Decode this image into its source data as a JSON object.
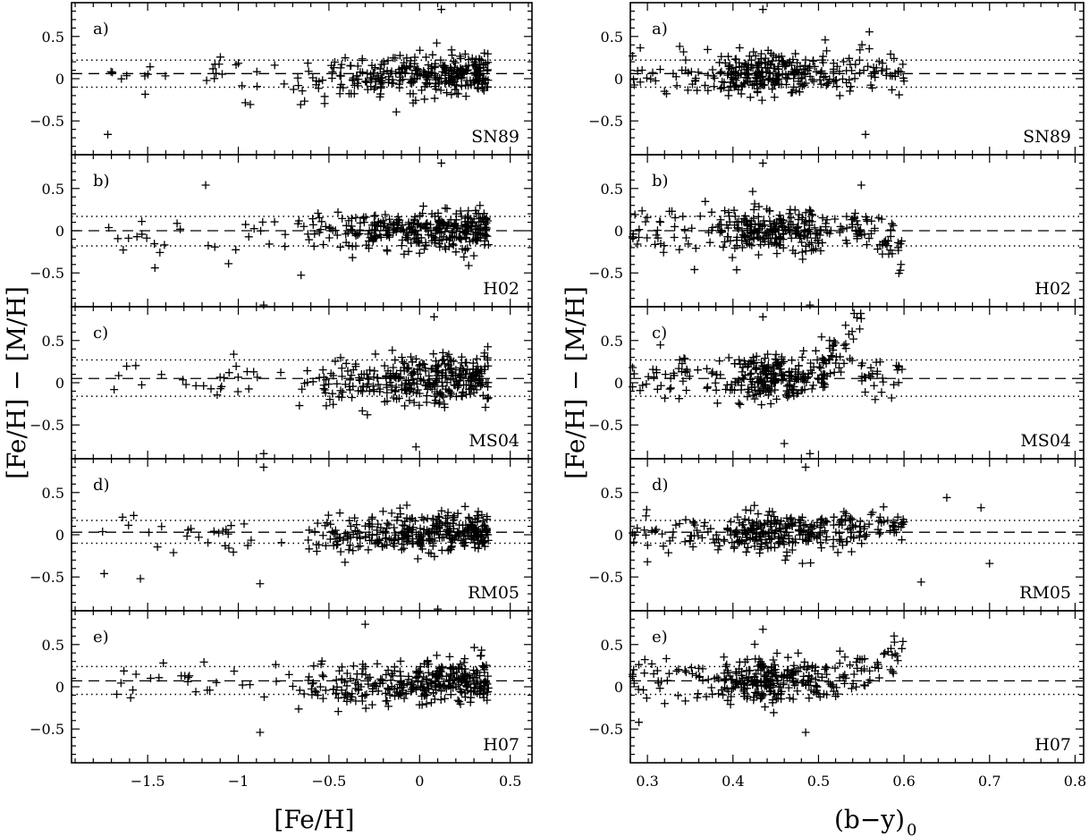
{
  "chart_data": {
    "type": "scatter",
    "marker": "plus",
    "color": "#000000",
    "ylabel": "[Fe/H] − [M/H]",
    "ylim": [
      -0.9,
      0.9
    ],
    "yticks": [
      -0.5,
      0,
      0.5
    ],
    "ytick_labels": [
      "−0.5",
      "0",
      "0.5"
    ],
    "columns": [
      {
        "xlabel_main": "[Fe/H]",
        "xlabel_sub": "",
        "xlim": [
          -1.92,
          0.62
        ],
        "xticks": [
          -1.5,
          -1,
          -0.5,
          0,
          0.5
        ],
        "xtick_labels": [
          "−1.5",
          "−1",
          "−0.5",
          "0",
          "0.5"
        ],
        "dist": {
          "kind": "metallicity",
          "n_main": 330,
          "main_min": -0.7,
          "main_max": 0.38,
          "skew": 0.55,
          "n_tail": 26,
          "tail_min": -1.75,
          "tail_max": -0.7
        }
      },
      {
        "xlabel_main": "(b−y)",
        "xlabel_sub": "0",
        "xlim": [
          0.28,
          0.81
        ],
        "xticks": [
          0.3,
          0.4,
          0.5,
          0.6,
          0.7,
          0.8
        ],
        "xtick_labels": [
          "0.3",
          "0.4",
          "0.5",
          "0.6",
          "0.7",
          "0.8"
        ],
        "dist": {
          "kind": "color",
          "center": 0.44,
          "sd": 0.035,
          "n_main": 300,
          "n_tail": 30,
          "tail_min": 0.28,
          "tail_max": 0.36
        }
      }
    ],
    "panels": [
      {
        "letter": "a)",
        "label": "SN89",
        "mean": 0.06,
        "sigma_hi": 0.22,
        "sigma_lo": -0.1,
        "scatter_sd": 0.12,
        "highlights": [
          {
            "x": [
              0.12
            ],
            "y": [
              0.82
            ]
          },
          {
            "x": [
              -1.72
            ],
            "y": [
              -0.66
            ]
          }
        ],
        "highlights_color": [
          {
            "x": [
              0.435
            ],
            "y": [
              0.82
            ]
          },
          {
            "x": [
              0.555
            ],
            "y": [
              -0.66
            ]
          }
        ],
        "trend": [
          0,
          0.3
        ],
        "trend_color": [
          0.53,
          0.56,
          0.25
        ]
      },
      {
        "letter": "b)",
        "label": "H02",
        "mean": 0.0,
        "sigma_hi": 0.17,
        "sigma_lo": -0.18,
        "scatter_sd": 0.13,
        "highlights": [
          {
            "x": [
              0.12
            ],
            "y": [
              0.8
            ]
          },
          {
            "x": [
              -0.86
            ],
            "y": [
              -0.88
            ]
          },
          {
            "x": [
              -1.18
            ],
            "y": [
              0.54
            ]
          },
          {
            "x": [
              -1.46
            ],
            "y": [
              -0.44
            ]
          }
        ],
        "highlights_color": [
          {
            "x": [
              0.435
            ],
            "y": [
              0.8
            ]
          },
          {
            "x": [
              0.49
            ],
            "y": [
              -0.88
            ]
          },
          {
            "x": [
              0.55
            ],
            "y": [
              0.54
            ]
          },
          {
            "x": [
              0.355
            ],
            "y": [
              -0.46
            ]
          }
        ],
        "trend": [
          0,
          0.0
        ],
        "trend_color": [
          0.56,
          0.6,
          -0.3
        ]
      },
      {
        "letter": "c)",
        "label": "MS04",
        "mean": 0.05,
        "sigma_hi": 0.27,
        "sigma_lo": -0.16,
        "scatter_sd": 0.14,
        "highlights": [
          {
            "x": [
              0.08
            ],
            "y": [
              0.78
            ]
          },
          {
            "x": [
              -0.86
            ],
            "y": [
              -0.84
            ]
          },
          {
            "x": [
              -0.02
            ],
            "y": [
              -0.76
            ]
          }
        ],
        "highlights_color": [
          {
            "x": [
              0.435
            ],
            "y": [
              0.78
            ]
          },
          {
            "x": [
              0.49
            ],
            "y": [
              -0.84
            ]
          },
          {
            "x": [
              0.55
            ],
            "y": [
              0.76
            ]
          },
          {
            "x": [
              0.46
            ],
            "y": [
              -0.72
            ]
          }
        ],
        "trend": [
          0,
          0.3
        ],
        "trend_color": [
          0.5,
          0.55,
          0.6
        ]
      },
      {
        "letter": "d)",
        "label": "RM05",
        "mean": 0.03,
        "sigma_hi": 0.17,
        "sigma_lo": -0.1,
        "scatter_sd": 0.11,
        "highlights": [
          {
            "x": [
              -0.86
            ],
            "y": [
              0.8
            ]
          },
          {
            "x": [
              -0.88
            ],
            "y": [
              -0.58
            ]
          },
          {
            "x": [
              -1.74
            ],
            "y": [
              -0.46
            ]
          },
          {
            "x": [
              -1.54
            ],
            "y": [
              -0.52
            ]
          }
        ],
        "highlights_color": [
          {
            "x": [
              0.485
            ],
            "y": [
              0.8
            ]
          },
          {
            "x": [
              0.62
            ],
            "y": [
              -0.56
            ]
          },
          {
            "x": [
              0.65
            ],
            "y": [
              0.44
            ]
          },
          {
            "x": [
              0.69
            ],
            "y": [
              0.32
            ]
          },
          {
            "x": [
              0.7
            ],
            "y": [
              -0.34
            ]
          },
          {
            "x": [
              0.3
            ],
            "y": [
              -0.32
            ]
          }
        ],
        "trend": [
          0,
          0.15
        ],
        "trend_color": [
          0.5,
          0.7,
          0.2
        ]
      },
      {
        "letter": "e)",
        "label": "H07",
        "mean": 0.07,
        "sigma_hi": 0.24,
        "sigma_lo": -0.09,
        "scatter_sd": 0.13,
        "highlights": [
          {
            "x": [
              0.1
            ],
            "y": [
              0.92
            ]
          },
          {
            "x": [
              -0.3
            ],
            "y": [
              0.74
            ]
          },
          {
            "x": [
              -0.88
            ],
            "y": [
              -0.54
            ]
          }
        ],
        "highlights_color": [
          {
            "x": [
              0.625
            ],
            "y": [
              0.9
            ]
          },
          {
            "x": [
              0.435
            ],
            "y": [
              0.68
            ]
          },
          {
            "x": [
              0.485
            ],
            "y": [
              -0.54
            ]
          },
          {
            "x": [
              0.29
            ],
            "y": [
              -0.42
            ]
          }
        ],
        "trend": [
          0,
          0.25
        ],
        "trend_color": [
          0.52,
          0.64,
          0.5
        ]
      }
    ]
  }
}
